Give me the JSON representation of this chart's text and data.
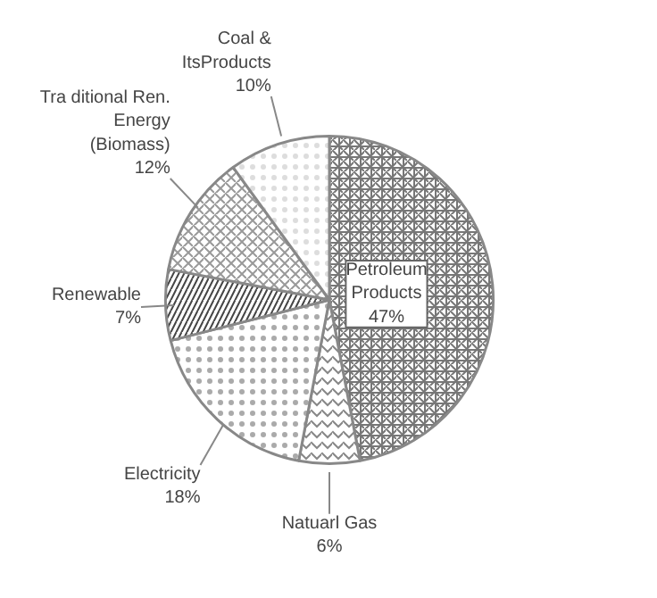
{
  "chart_data": {
    "type": "pie",
    "categories": [
      "Petroleum\nProducts",
      "Natuarl Gas",
      "Electricity",
      "Renewable",
      "Tra ditional Ren.\nEnergy\n(Biomass)",
      "Coal &\nItsProducts"
    ],
    "values": [
      47,
      6,
      18,
      7,
      12,
      10
    ],
    "value_labels": [
      "47%",
      "6%",
      "18%",
      "7%",
      "12%",
      "10%"
    ],
    "colors": [
      "#ffffff",
      "#ffffff",
      "#ffffff",
      "#ffffff",
      "#ffffff",
      "#ffffff"
    ]
  }
}
